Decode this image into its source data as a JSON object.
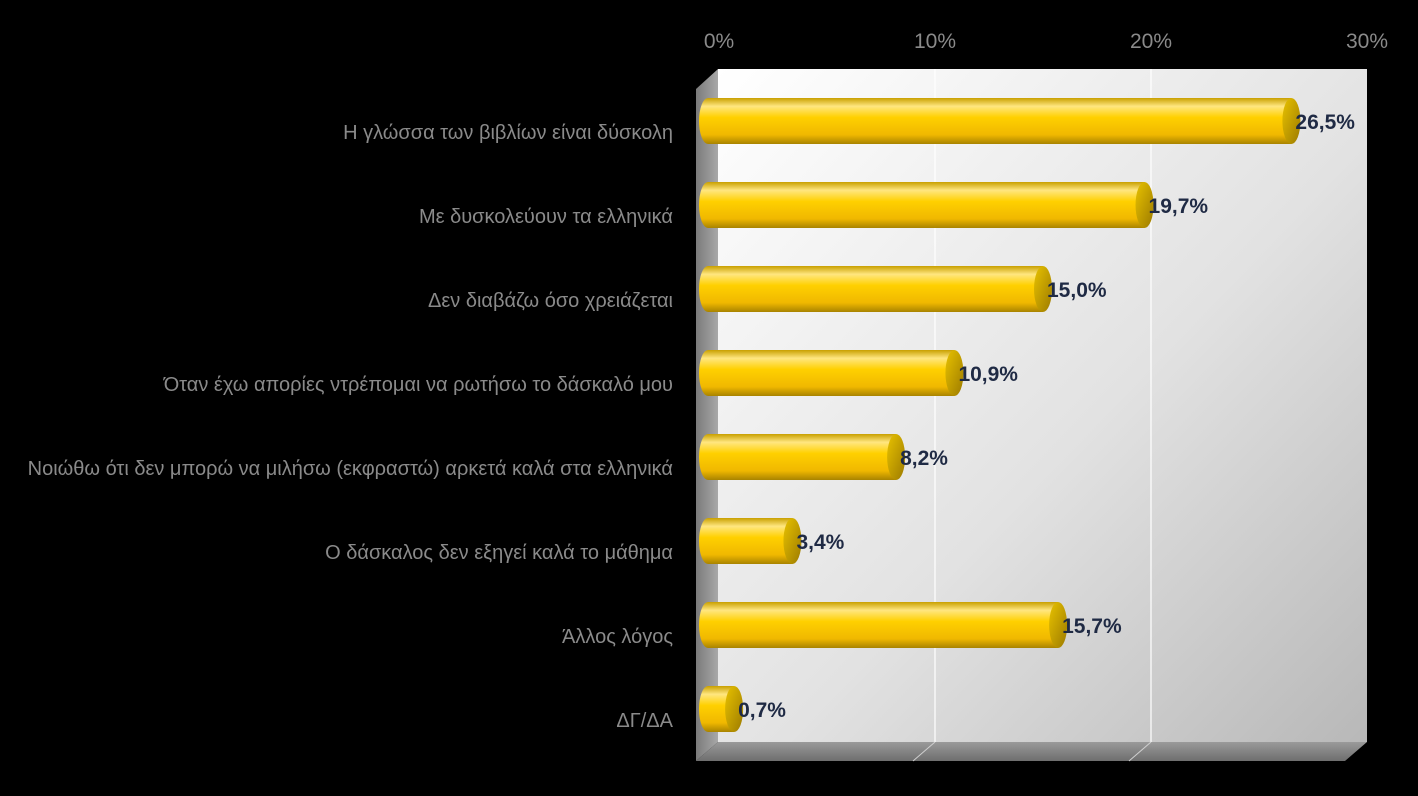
{
  "chart_data": {
    "type": "bar",
    "orientation": "horizontal",
    "title": "",
    "xlabel": "",
    "ylabel": "",
    "xlim": [
      0,
      30
    ],
    "ticks": [
      "0%",
      "10%",
      "20%",
      "30%"
    ],
    "tick_values": [
      0,
      10,
      20,
      30
    ],
    "grid": true,
    "legend": "none",
    "categories": [
      "Η γλώσσα των βιβλίων είναι δύσκολη",
      "Με δυσκολεύουν τα ελληνικά",
      "Δεν διαβάζω όσο χρειάζεται",
      "Όταν έχω απορίες ντρέπομαι να ρωτήσω το δάσκαλό μου",
      "Νοιώθω ότι δεν μπορώ να μιλήσω (εκφραστώ) αρκετά καλά στα ελληνικά",
      "Ο δάσκαλος δεν εξηγεί καλά το μάθημα",
      "Άλλος λόγος",
      "ΔΓ/ΔΑ"
    ],
    "values": [
      26.5,
      19.7,
      15.0,
      10.9,
      8.2,
      3.4,
      15.7,
      0.7
    ],
    "value_labels": [
      "26,5%",
      "19,7%",
      "15,0%",
      "10,9%",
      "8,2%",
      "3,4%",
      "15,7%",
      "0,7%"
    ],
    "colors": {
      "bar": "#f5c400",
      "bar_highlight": "#fff07a",
      "data_label": "#1f2a44",
      "tick_label": "#8a8a8a",
      "category_label": "#8a8a8a",
      "background": "#000000"
    }
  }
}
